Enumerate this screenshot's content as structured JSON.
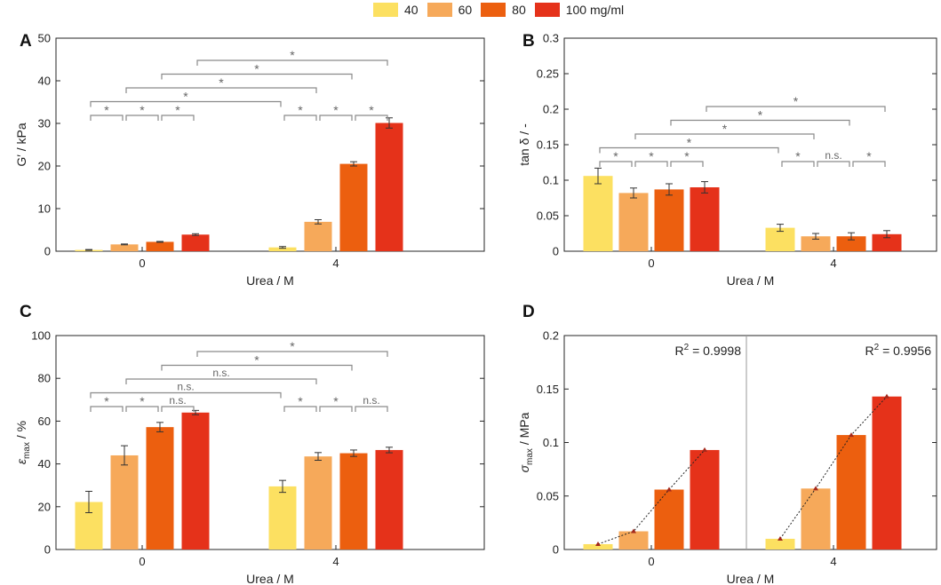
{
  "colors": [
    "#FCE061",
    "#F6A95A",
    "#EC5F0F",
    "#E5321A"
  ],
  "legend": [
    "40",
    "60",
    "80",
    "100 mg/ml"
  ],
  "chart_data": [
    {
      "panel_label": "A",
      "type": "bar",
      "ylabel": "G′ / kPa",
      "xlabel": "Urea / M",
      "ylim": [
        0,
        50
      ],
      "yticks": [
        0,
        10,
        20,
        30,
        40,
        50
      ],
      "ytick_labels": [
        "0",
        "10",
        "20",
        "30",
        "40",
        "50"
      ],
      "categories": [
        "0",
        "4"
      ],
      "series": [
        {
          "name": "40",
          "values": [
            0.3,
            0.9
          ],
          "errors": [
            0.1,
            0.2
          ]
        },
        {
          "name": "60",
          "values": [
            1.6,
            6.9
          ],
          "errors": [
            0.1,
            0.5
          ]
        },
        {
          "name": "80",
          "values": [
            2.2,
            20.5
          ],
          "errors": [
            0.1,
            0.5
          ]
        },
        {
          "name": "100 mg/ml",
          "values": [
            3.9,
            30.1
          ],
          "errors": [
            0.2,
            1.2
          ]
        }
      ],
      "significance": [
        {
          "from": [
            0,
            0
          ],
          "to": [
            0,
            1
          ],
          "label": "*"
        },
        {
          "from": [
            0,
            1
          ],
          "to": [
            0,
            2
          ],
          "label": "*"
        },
        {
          "from": [
            0,
            2
          ],
          "to": [
            0,
            3
          ],
          "label": "*"
        },
        {
          "from": [
            1,
            0
          ],
          "to": [
            1,
            1
          ],
          "label": "*"
        },
        {
          "from": [
            1,
            1
          ],
          "to": [
            1,
            2
          ],
          "label": "*"
        },
        {
          "from": [
            1,
            2
          ],
          "to": [
            1,
            3
          ],
          "label": "*"
        },
        {
          "from": [
            0,
            0
          ],
          "to": [
            1,
            0
          ],
          "label": "*"
        },
        {
          "from": [
            0,
            1
          ],
          "to": [
            1,
            1
          ],
          "label": "*"
        },
        {
          "from": [
            0,
            2
          ],
          "to": [
            1,
            2
          ],
          "label": "*"
        },
        {
          "from": [
            0,
            3
          ],
          "to": [
            1,
            3
          ],
          "label": "*"
        }
      ]
    },
    {
      "panel_label": "B",
      "type": "bar",
      "ylabel": "tan δ / -",
      "xlabel": "Urea / M",
      "ylim": [
        0,
        0.3
      ],
      "yticks": [
        0,
        0.05,
        0.1,
        0.15,
        0.2,
        0.25,
        0.3
      ],
      "ytick_labels": [
        "0",
        "0.05",
        "0.1",
        "0.15",
        "0.2",
        "0.25",
        "0.3"
      ],
      "categories": [
        "0",
        "4"
      ],
      "series": [
        {
          "name": "40",
          "values": [
            0.106,
            0.033
          ],
          "errors": [
            0.011,
            0.005
          ]
        },
        {
          "name": "60",
          "values": [
            0.082,
            0.021
          ],
          "errors": [
            0.007,
            0.004
          ]
        },
        {
          "name": "80",
          "values": [
            0.087,
            0.021
          ],
          "errors": [
            0.008,
            0.005
          ]
        },
        {
          "name": "100 mg/ml",
          "values": [
            0.09,
            0.024
          ],
          "errors": [
            0.008,
            0.005
          ]
        }
      ],
      "significance": [
        {
          "from": [
            0,
            0
          ],
          "to": [
            0,
            1
          ],
          "label": "*"
        },
        {
          "from": [
            0,
            1
          ],
          "to": [
            0,
            2
          ],
          "label": "*"
        },
        {
          "from": [
            0,
            2
          ],
          "to": [
            0,
            3
          ],
          "label": "*"
        },
        {
          "from": [
            1,
            0
          ],
          "to": [
            1,
            1
          ],
          "label": "*"
        },
        {
          "from": [
            1,
            1
          ],
          "to": [
            1,
            2
          ],
          "label": "n.s."
        },
        {
          "from": [
            1,
            2
          ],
          "to": [
            1,
            3
          ],
          "label": "*"
        },
        {
          "from": [
            0,
            0
          ],
          "to": [
            1,
            0
          ],
          "label": "*"
        },
        {
          "from": [
            0,
            1
          ],
          "to": [
            1,
            1
          ],
          "label": "*"
        },
        {
          "from": [
            0,
            2
          ],
          "to": [
            1,
            2
          ],
          "label": "*"
        },
        {
          "from": [
            0,
            3
          ],
          "to": [
            1,
            3
          ],
          "label": "*"
        }
      ]
    },
    {
      "panel_label": "C",
      "type": "bar",
      "ylabel_main": "ε",
      "ylabel_sub": "max",
      "ylabel_suffix": " / %",
      "xlabel": "Urea / M",
      "ylim": [
        0,
        100
      ],
      "yticks": [
        0,
        20,
        40,
        60,
        80,
        100
      ],
      "ytick_labels": [
        "0",
        "20",
        "40",
        "60",
        "80",
        "100"
      ],
      "categories": [
        "0",
        "4"
      ],
      "series": [
        {
          "name": "40",
          "values": [
            22.2,
            29.5
          ],
          "errors": [
            5.0,
            2.8
          ]
        },
        {
          "name": "60",
          "values": [
            44.0,
            43.5
          ],
          "errors": [
            4.5,
            1.8
          ]
        },
        {
          "name": "80",
          "values": [
            57.2,
            45.0
          ],
          "errors": [
            2.2,
            1.5
          ]
        },
        {
          "name": "100 mg/ml",
          "values": [
            64.0,
            46.5
          ],
          "errors": [
            1.0,
            1.3
          ]
        }
      ],
      "significance": [
        {
          "from": [
            0,
            0
          ],
          "to": [
            0,
            1
          ],
          "label": "*"
        },
        {
          "from": [
            0,
            1
          ],
          "to": [
            0,
            2
          ],
          "label": "*"
        },
        {
          "from": [
            0,
            2
          ],
          "to": [
            0,
            3
          ],
          "label": "n.s."
        },
        {
          "from": [
            1,
            0
          ],
          "to": [
            1,
            1
          ],
          "label": "*"
        },
        {
          "from": [
            1,
            1
          ],
          "to": [
            1,
            2
          ],
          "label": "*"
        },
        {
          "from": [
            1,
            2
          ],
          "to": [
            1,
            3
          ],
          "label": "n.s."
        },
        {
          "from": [
            0,
            0
          ],
          "to": [
            1,
            0
          ],
          "label": "n.s."
        },
        {
          "from": [
            0,
            1
          ],
          "to": [
            1,
            1
          ],
          "label": "n.s."
        },
        {
          "from": [
            0,
            2
          ],
          "to": [
            1,
            2
          ],
          "label": "*"
        },
        {
          "from": [
            0,
            3
          ],
          "to": [
            1,
            3
          ],
          "label": "*"
        }
      ]
    },
    {
      "panel_label": "D",
      "type": "bar",
      "ylabel_main": "σ",
      "ylabel_sub": "max",
      "ylabel_suffix": " / MPa",
      "xlabel": "Urea / M",
      "ylim": [
        0,
        0.2
      ],
      "yticks": [
        0,
        0.05,
        0.1,
        0.15,
        0.2
      ],
      "ytick_labels": [
        "0",
        "0.05",
        "0.1",
        "0.15",
        "0.2"
      ],
      "categories": [
        "0",
        "4"
      ],
      "series": [
        {
          "name": "40",
          "values": [
            0.005,
            0.01
          ]
        },
        {
          "name": "60",
          "values": [
            0.017,
            0.057
          ]
        },
        {
          "name": "80",
          "values": [
            0.056,
            0.107
          ]
        },
        {
          "name": "100 mg/ml",
          "values": [
            0.093,
            0.143
          ]
        }
      ],
      "annotations": [
        {
          "group": 0,
          "text": "0.9998"
        },
        {
          "group": 1,
          "text": "0.9956"
        }
      ],
      "fit_label": "R",
      "fit_sup": "2",
      "fit_eq": " = "
    }
  ]
}
